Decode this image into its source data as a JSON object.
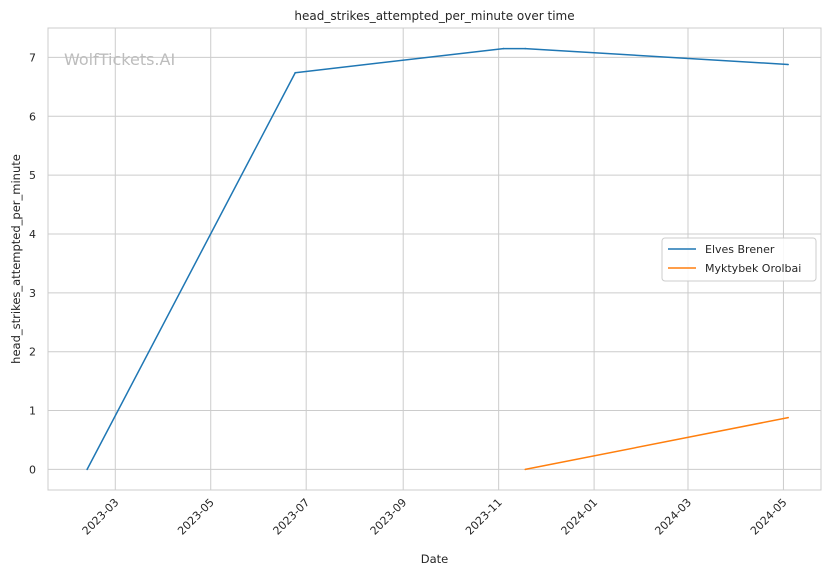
{
  "chart_data": {
    "type": "line",
    "title": "head_strikes_attempted_per_minute over time",
    "xlabel": "Date",
    "ylabel": "head_strikes_attempted_per_minute",
    "watermark": "WolfTickets.AI",
    "xlim": [
      "2023-01-17",
      "2024-05-25"
    ],
    "ylim": [
      -0.35,
      7.5
    ],
    "x_ticks": [
      "2023-03",
      "2023-05",
      "2023-07",
      "2023-09",
      "2023-11",
      "2024-01",
      "2024-03",
      "2024-05"
    ],
    "y_ticks": [
      0,
      1,
      2,
      3,
      4,
      5,
      6,
      7
    ],
    "grid": true,
    "legend_position": "center-right",
    "series": [
      {
        "name": "Elves Brener",
        "color": "#1f77b4",
        "points": [
          {
            "x": "2023-02-11",
            "y": 0
          },
          {
            "x": "2023-06-24",
            "y": 6.74
          },
          {
            "x": "2023-11-04",
            "y": 7.15
          },
          {
            "x": "2023-11-18",
            "y": 7.15
          },
          {
            "x": "2024-05-04",
            "y": 6.88
          }
        ]
      },
      {
        "name": "Myktybek Orolbai",
        "color": "#ff7f0e",
        "points": [
          {
            "x": "2023-11-18",
            "y": 0
          },
          {
            "x": "2024-05-04",
            "y": 0.88
          }
        ]
      }
    ]
  }
}
